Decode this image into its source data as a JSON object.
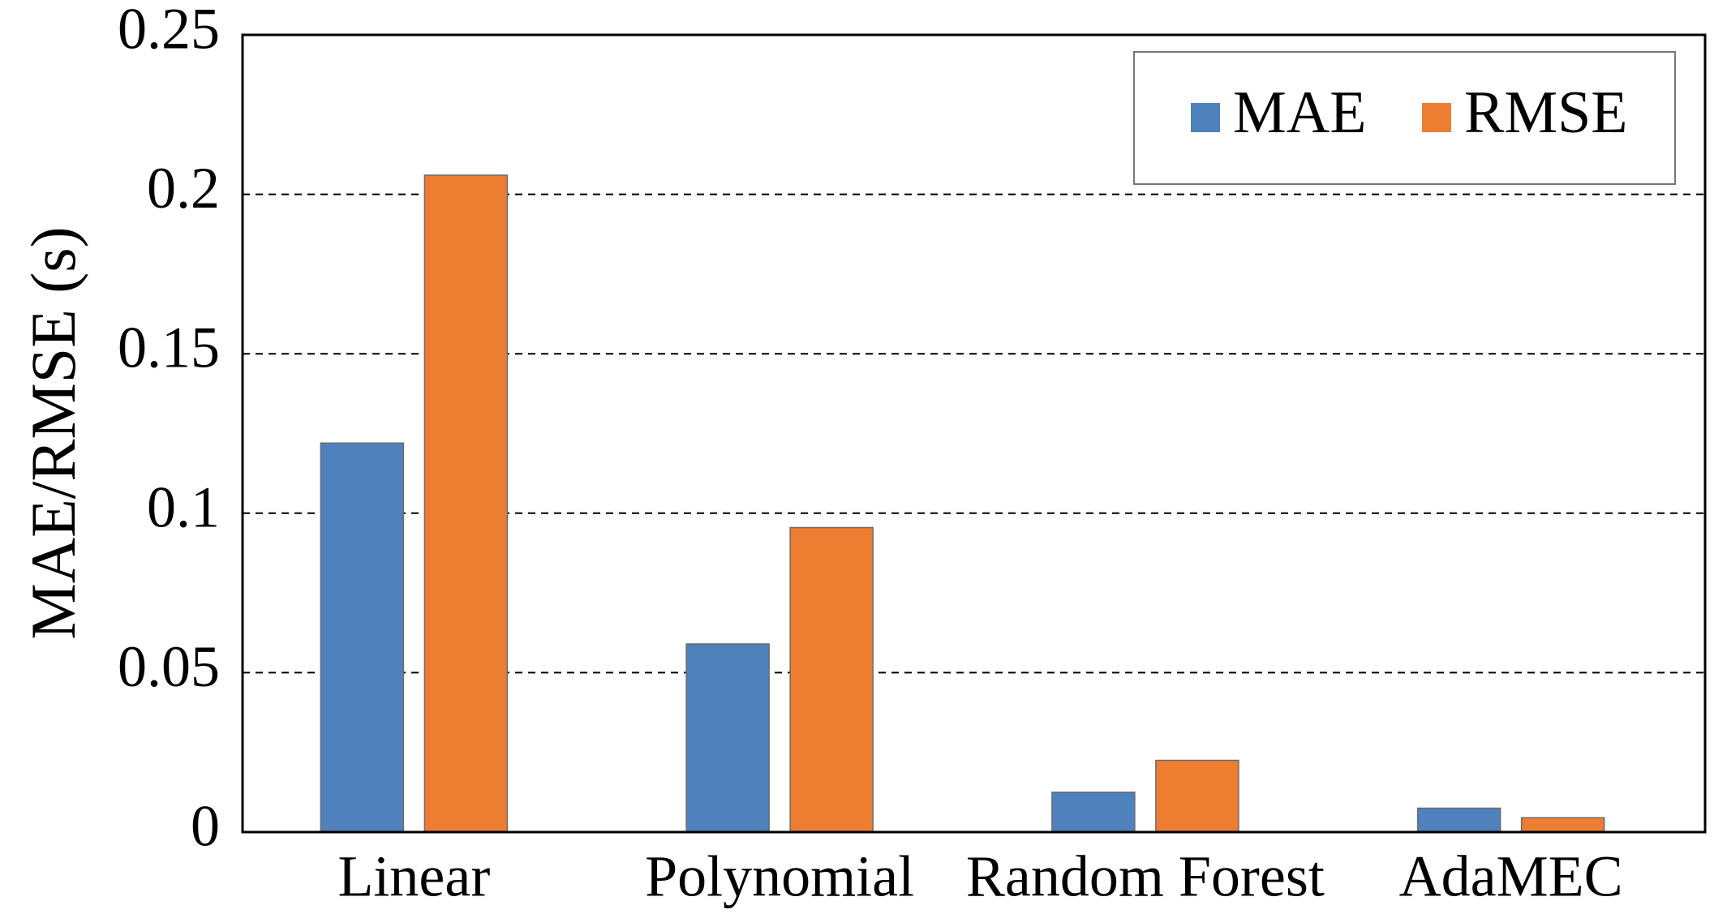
{
  "chart_data": {
    "type": "bar",
    "title": "",
    "xlabel": "",
    "ylabel": "MAE/RMSE (s)",
    "ylim": [
      0,
      0.25
    ],
    "yticks": [
      0,
      0.05,
      0.1,
      0.15,
      0.2,
      0.25
    ],
    "ytick_labels": [
      "0",
      "0.05",
      "0.1",
      "0.15",
      "0.2",
      "0.25"
    ],
    "grid": true,
    "legend_position": "top-right",
    "categories": [
      "Linear",
      "Polynomial",
      "Random Forest",
      "AdaMEC"
    ],
    "series": [
      {
        "name": "MAE",
        "color": "#4F81BD",
        "values": [
          0.122,
          0.059,
          0.0125,
          0.0075
        ]
      },
      {
        "name": "RMSE",
        "color": "#ED7D31",
        "values": [
          0.206,
          0.0955,
          0.0225,
          0.0045
        ]
      }
    ]
  }
}
